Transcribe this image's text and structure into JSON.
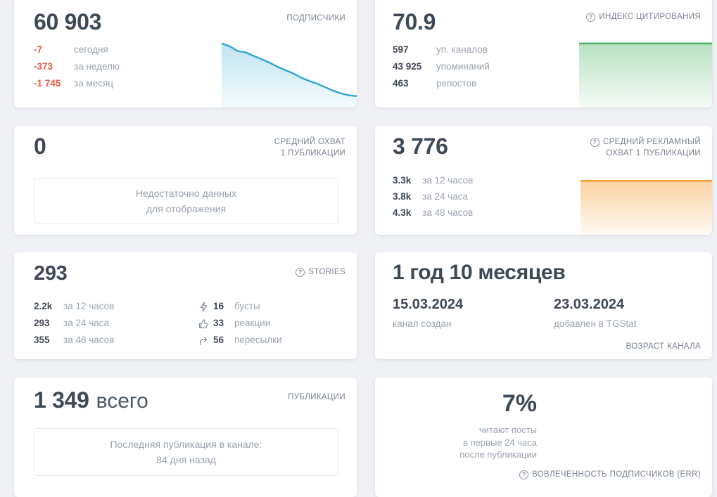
{
  "icons": {
    "help": "?"
  },
  "cards": {
    "subscribers": {
      "value": "60 903",
      "title": "ПОДПИСЧИКИ",
      "stats": [
        {
          "value": "-7",
          "label": "сегодня"
        },
        {
          "value": "-373",
          "label": "за неделю"
        },
        {
          "value": "-1 745",
          "label": "за месяц"
        }
      ]
    },
    "citation": {
      "value": "70.9",
      "title": "ИНДЕКС ЦИТИРОВАНИЯ",
      "stats": [
        {
          "value": "597",
          "label": "уп. каналов"
        },
        {
          "value": "43 925",
          "label": "упоминаний"
        },
        {
          "value": "463",
          "label": "репостов"
        }
      ]
    },
    "avg_reach": {
      "value": "0",
      "title_line1": "СРЕДНИЙ ОХВАТ",
      "title_line2": "1 ПУБЛИКАЦИИ",
      "empty_line1": "Недостаточно данных",
      "empty_line2": "для отображения"
    },
    "ad_reach": {
      "value": "3 776",
      "title_line1": "СРЕДНИЙ РЕКЛАМНЫЙ",
      "title_line2": "ОХВАТ 1 ПУБЛИКАЦИИ",
      "stats": [
        {
          "value": "3.3k",
          "label": "за 12 часов"
        },
        {
          "value": "3.8k",
          "label": "за 24 часа"
        },
        {
          "value": "4.3k",
          "label": "за 48 часов"
        }
      ]
    },
    "stories": {
      "value": "293",
      "title": "STORIES",
      "stats": [
        {
          "value": "2.2k",
          "label": "за 12 часов"
        },
        {
          "value": "293",
          "label": "за 24 часа"
        },
        {
          "value": "355",
          "label": "за 48 часов"
        }
      ],
      "engagement": [
        {
          "icon": "boost-icon",
          "value": "16",
          "label": "бусты"
        },
        {
          "icon": "thumbs-up-icon",
          "value": "33",
          "label": "реакции"
        },
        {
          "icon": "forward-icon",
          "value": "56",
          "label": "пересылки"
        }
      ]
    },
    "age": {
      "value": "1 год 10 месяцев",
      "title": "ВОЗРАСТ КАНАЛА",
      "created_date": "15.03.2024",
      "created_label": "канал создан",
      "added_date": "23.03.2024",
      "added_label": "добавлен в TGStat"
    },
    "publications": {
      "value": "1 349",
      "value_suffix": "всего",
      "title": "ПУБЛИКАЦИИ",
      "note_line1": "Последняя публикация в канале:",
      "note_line2": "84 дня назад"
    },
    "err": {
      "value": "7%",
      "line1": "читают посты",
      "line2": "в первые 24 часа",
      "line3": "после публикации",
      "title": "ВОВЛЕЧЕННОСТЬ ПОДПИСЧИКОВ (ERR)"
    }
  },
  "chart_data": [
    {
      "name": "subscribers-trend",
      "type": "area",
      "label": "ПОДПИСЧИКИ",
      "color": "#2ba6d2",
      "top_opacity": 0.3,
      "values": [
        62650,
        62560,
        62400,
        62355,
        62240,
        62130,
        62015,
        61880,
        61765,
        61655,
        61515,
        61405,
        61315,
        61200,
        61085,
        60995,
        60930,
        60903
      ],
      "ylim": [
        60903,
        62650
      ],
      "grid": false,
      "legend": false
    },
    {
      "name": "citation-trend",
      "type": "area",
      "label": "ИНДЕКС ЦИТИРОВАНИЯ",
      "color": "#43b05b",
      "top_opacity": 0.38,
      "values": [
        70.9,
        70.9
      ],
      "grid": false,
      "legend": false
    },
    {
      "name": "ad-reach-trend",
      "type": "area",
      "label": "СРЕДНИЙ РЕКЛАМНЫЙ ОХВАТ 1 ПУБЛИКАЦИИ",
      "color": "#f59b2e",
      "top_opacity": 0.45,
      "values": [
        3776,
        3776
      ],
      "grid": false,
      "legend": false
    }
  ]
}
